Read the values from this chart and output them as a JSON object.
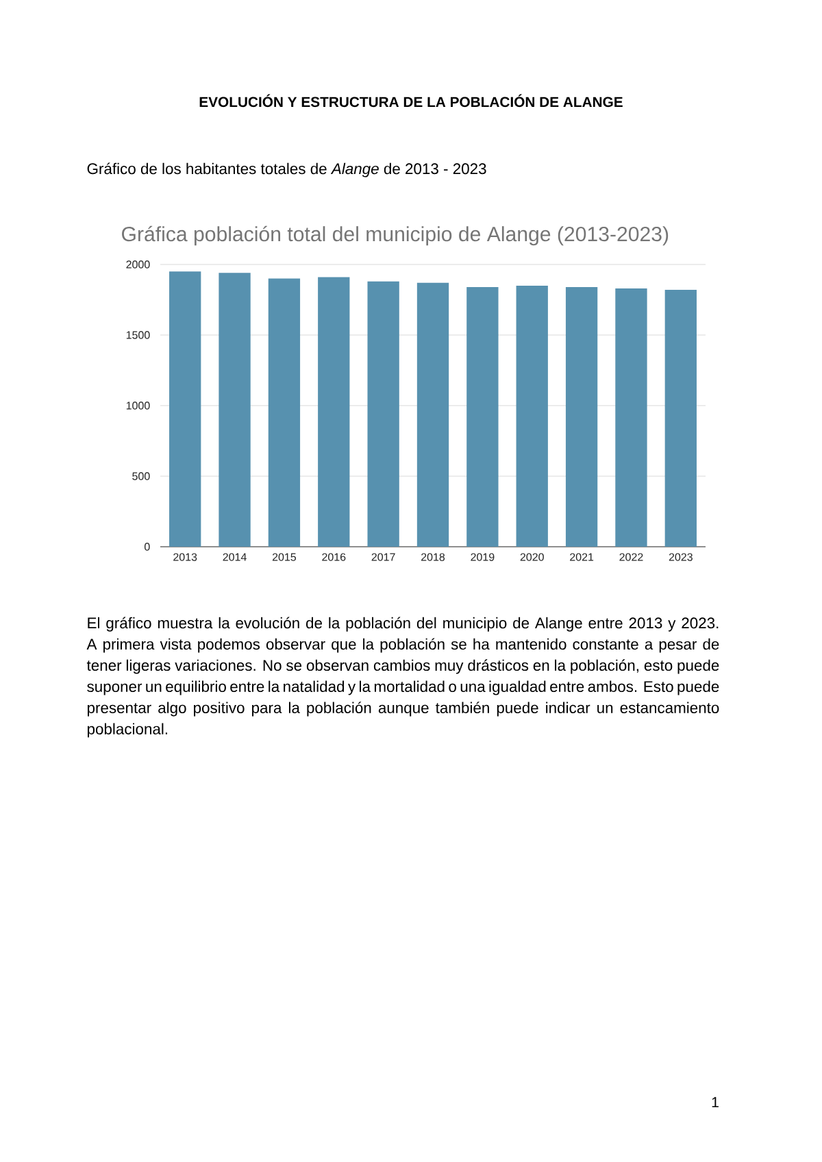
{
  "chart_data": {
    "type": "bar",
    "title": "Gráfica población total del municipio de Alange (2013-2023)",
    "categories": [
      "2013",
      "2014",
      "2015",
      "2016",
      "2017",
      "2018",
      "2019",
      "2020",
      "2021",
      "2022",
      "2023"
    ],
    "values": [
      1950,
      1940,
      1900,
      1910,
      1880,
      1870,
      1840,
      1850,
      1840,
      1830,
      1820
    ],
    "color": "#5791af",
    "ylim": [
      0,
      2000
    ],
    "yticks": [
      0,
      500,
      1000,
      1500,
      2000
    ],
    "grid": "y",
    "annotations": [
      "EVOLUCIÓN Y ESTRUCTURA DE LA POBLACIÓN DE ALANGE",
      "Gráfico de los habitantes totales de *Alange* de 2013 - 2023",
      "El gráfico muestra la evolución de la población del municipio de Alange entre 2013 y 2023. A primera vista podemos observar que la población se ha mantenido constante a pesar de tener ligeras variaciones. No se observan cambios muy drásticos en la población, esto puede suponer un equilibrio entre la natalidad y la mortalidad o una igualdad entre ambos. Esto puede presentar algo positivo para la población aunque también puede indicar un estancamiento poblacional.",
      "1"
    ]
  }
}
